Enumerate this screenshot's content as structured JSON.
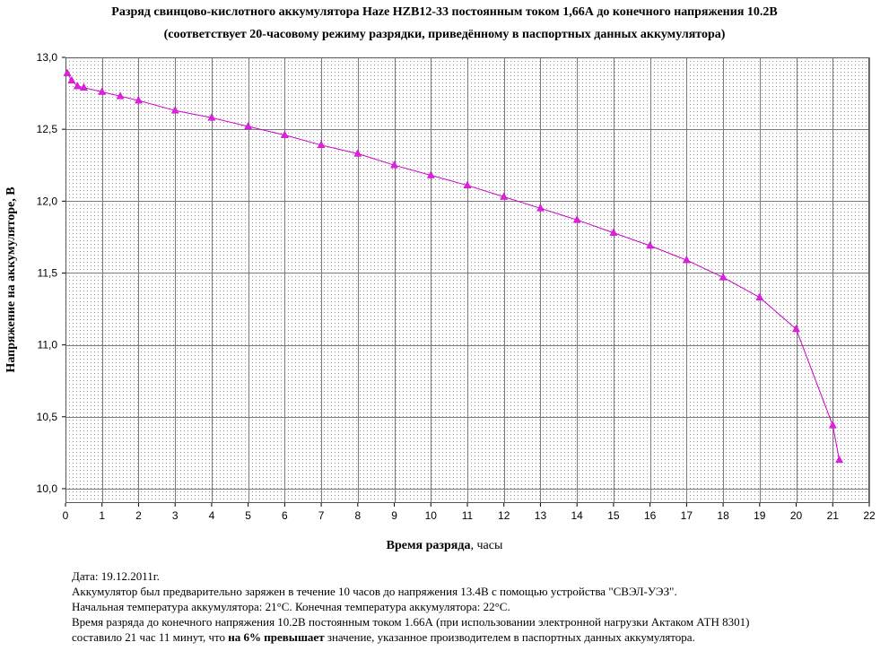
{
  "chart_data": {
    "type": "line",
    "title_line1": "Разряд свинцово-кислотного аккумулятора Haze HZB12-33 постоянным током 1,66А до конечного напряжения 10.2В",
    "title_line2": "(соответствует 20-часовому режиму разрядки, приведённому в паспортных данных аккумулятора)",
    "xlabel_bold": "Время разряда",
    "xlabel_rest": ", часы",
    "ylabel": "Напряжение на аккумуляторе, В",
    "xlim": [
      0,
      22
    ],
    "ylim": [
      9.9,
      13.0
    ],
    "x_ticks": [
      "0",
      "1",
      "2",
      "3",
      "4",
      "5",
      "6",
      "7",
      "8",
      "9",
      "10",
      "11",
      "12",
      "13",
      "14",
      "15",
      "16",
      "17",
      "18",
      "19",
      "20",
      "21",
      "22"
    ],
    "y_ticks": [
      {
        "v": 10.0,
        "label": "10,0"
      },
      {
        "v": 10.5,
        "label": "10,5"
      },
      {
        "v": 11.0,
        "label": "11,0"
      },
      {
        "v": 11.5,
        "label": "11,5"
      },
      {
        "v": 12.0,
        "label": "12,0"
      },
      {
        "v": 12.5,
        "label": "12,5"
      },
      {
        "v": 13.0,
        "label": "13,0"
      }
    ],
    "grid": true,
    "series_color": "#cc00cc",
    "marker_color": "#e020e0",
    "x": [
      0.05,
      0.17,
      0.33,
      0.5,
      1,
      1.5,
      2,
      3,
      4,
      5,
      6,
      7,
      8,
      9,
      10,
      11,
      12,
      13,
      14,
      15,
      16,
      17,
      18,
      19,
      20,
      21,
      21.18
    ],
    "y": [
      12.89,
      12.84,
      12.8,
      12.79,
      12.76,
      12.73,
      12.7,
      12.63,
      12.58,
      12.52,
      12.46,
      12.39,
      12.33,
      12.25,
      12.18,
      12.11,
      12.03,
      11.95,
      11.87,
      11.78,
      11.69,
      11.59,
      11.47,
      11.33,
      11.11,
      10.44,
      10.2
    ]
  },
  "notes": {
    "line1": "Дата: 19.12.2011г.",
    "line2": "Аккумулятор был предварительно заряжен в течение 10 часов до напряжения 13.4В с помощью устройства \"СВЭЛ-УЭЗ\".",
    "line3": "Начальная температура аккумулятора: 21°С. Конечная температура аккумулятора: 22°С.",
    "line4": "Время разряда до конечного напряжения 10.2В постоянным током 1.66А (при использовании электронной нагрузки Актаком АТН 8301)",
    "line5_a": "составило 21 час 11 минут, что ",
    "line5_b": "на 6% превышает",
    "line5_c": " значение, указанное производителем в паспортных данных аккумулятора."
  }
}
